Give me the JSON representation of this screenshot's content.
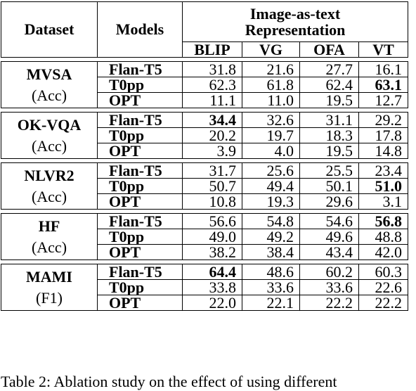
{
  "table": {
    "headers": {
      "dataset": "Dataset",
      "models": "Models",
      "group_line1": "Image-as-text",
      "group_line2": "Representation",
      "columns": [
        "BLIP",
        "VG",
        "OFA",
        "VT"
      ]
    },
    "groups": [
      {
        "name": "MVSA",
        "metric": "(Acc)",
        "rows": [
          {
            "model": "Flan-T5",
            "values": [
              "31.8",
              "21.6",
              "27.7",
              "16.1"
            ],
            "bold": []
          },
          {
            "model": "T0pp",
            "values": [
              "62.3",
              "61.8",
              "62.4",
              "63.1"
            ],
            "bold": [
              3
            ]
          },
          {
            "model": "OPT",
            "values": [
              "11.1",
              "11.0",
              "19.5",
              "12.7"
            ],
            "bold": []
          }
        ]
      },
      {
        "name": "OK-VQA",
        "metric": "(Acc)",
        "rows": [
          {
            "model": "Flan-T5",
            "values": [
              "34.4",
              "32.6",
              "31.1",
              "29.2"
            ],
            "bold": [
              0
            ]
          },
          {
            "model": "T0pp",
            "values": [
              "20.2",
              "19.7",
              "18.3",
              "17.8"
            ],
            "bold": []
          },
          {
            "model": "OPT",
            "values": [
              "3.9",
              "4.0",
              "19.5",
              "14.8"
            ],
            "bold": []
          }
        ]
      },
      {
        "name": "NLVR2",
        "metric": "(Acc)",
        "rows": [
          {
            "model": "Flan-T5",
            "values": [
              "31.7",
              "25.6",
              "25.5",
              "23.4"
            ],
            "bold": []
          },
          {
            "model": "T0pp",
            "values": [
              "50.7",
              "49.4",
              "50.1",
              "51.0"
            ],
            "bold": [
              3
            ]
          },
          {
            "model": "OPT",
            "values": [
              "10.8",
              "19.3",
              "29.6",
              "3.1"
            ],
            "bold": []
          }
        ]
      },
      {
        "name": "HF",
        "metric": "(Acc)",
        "rows": [
          {
            "model": "Flan-T5",
            "values": [
              "56.6",
              "54.8",
              "54.6",
              "56.8"
            ],
            "bold": [
              3
            ]
          },
          {
            "model": "T0pp",
            "values": [
              "49.0",
              "49.2",
              "49.6",
              "48.8"
            ],
            "bold": []
          },
          {
            "model": "OPT",
            "values": [
              "38.2",
              "38.4",
              "43.4",
              "42.0"
            ],
            "bold": []
          }
        ]
      },
      {
        "name": "MAMI",
        "metric": "(F1)",
        "rows": [
          {
            "model": "Flan-T5",
            "values": [
              "64.4",
              "48.6",
              "60.2",
              "60.3"
            ],
            "bold": [
              0
            ]
          },
          {
            "model": "T0pp",
            "values": [
              "33.8",
              "33.6",
              "33.6",
              "22.6"
            ],
            "bold": []
          },
          {
            "model": "OPT",
            "values": [
              "22.0",
              "22.1",
              "22.2",
              "22.2"
            ],
            "bold": []
          }
        ]
      }
    ]
  },
  "caption": "Table 2: Ablation study on the effect of using different"
}
